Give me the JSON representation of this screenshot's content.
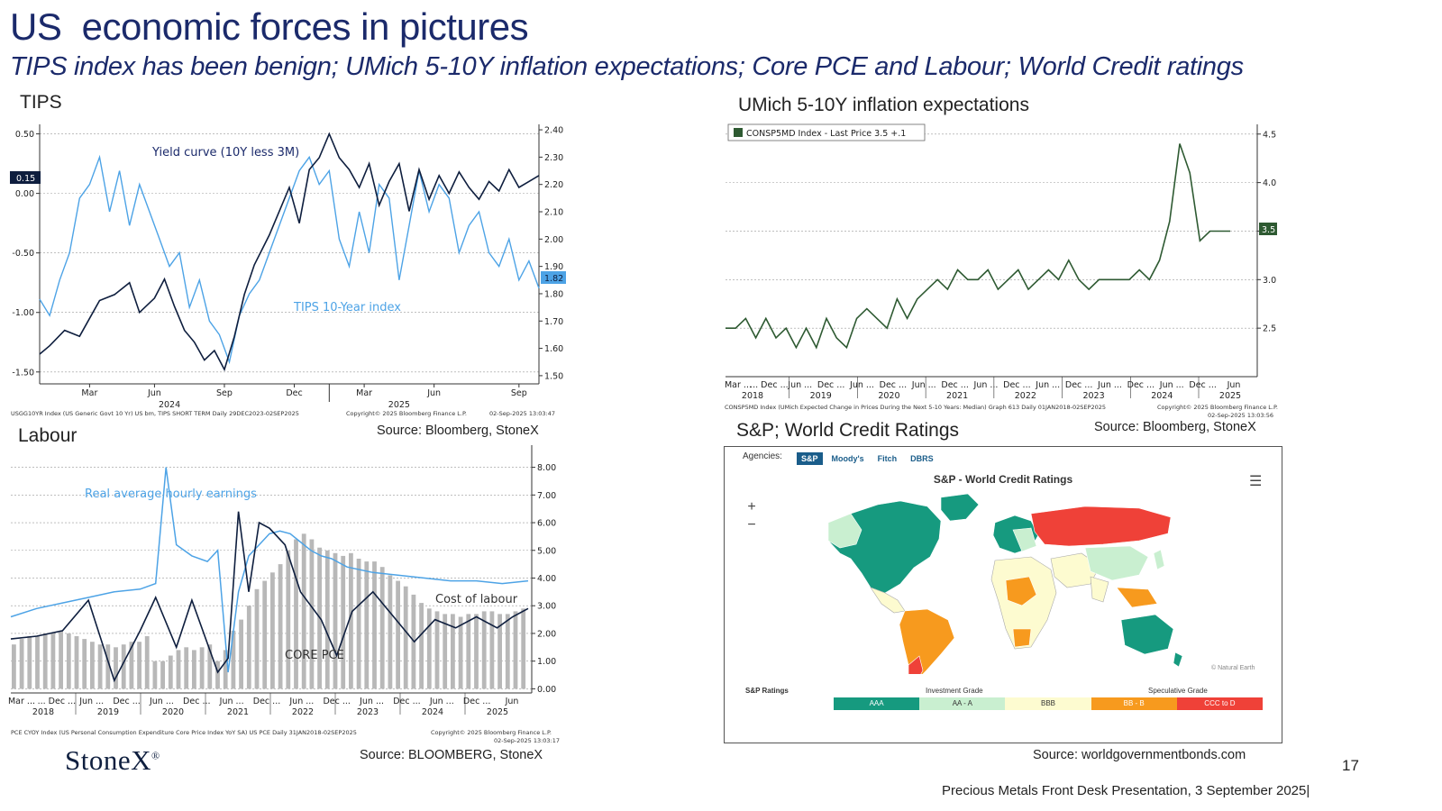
{
  "slide": {
    "title": "US  economic forces in pictures",
    "subtitle": "TIPS index has been benign; UMich 5-10Y inflation expectations; Core PCE and Labour; World Credit ratings",
    "brand": "StoneX",
    "brand_mark": "®",
    "page_number": "17",
    "footer": "Precious Metals Front Desk Presentation, 3 September 2025|",
    "colors": {
      "navy": "#1b2a6b",
      "tips_blue": "#4da3e6",
      "yield_dark": "#0e1e3e",
      "umich_green": "#2e5a32",
      "pce_bar": "#b8b8b8"
    }
  },
  "panels": {
    "tips": {
      "label": "TIPS",
      "source": "Source: Bloomberg, StoneX",
      "footnote_left": "USGG10YR Index (US Generic Govt 10 Yr) US bm, TIPS SHORT TERM  Daily 29DEC2023-02SEP2025",
      "footnote_mid": "Copyright© 2025 Bloomberg Finance L.P.",
      "footnote_right": "02-Sep-2025 13:03:47"
    },
    "umich": {
      "label": "UMich 5-10Y inflation expectations",
      "source": "Source: Bloomberg, StoneX",
      "legend": "CONSP5MD Index - Last Price 3.5  +.1",
      "footnote_left": "CONSP5MD Index (UMich Expected Change in Prices During the Next 5-10 Years: Median) Graph 613  Daily 01JAN2018-02SEP2025",
      "footnote_mid": "Copyright© 2025 Bloomberg Finance L.P.",
      "footnote_right": "02-Sep-2025 13:03:56"
    },
    "labour": {
      "label": "Labour",
      "source": "Source: BLOOMBERG, StoneX",
      "footnote_left": "PCE CYOY Index (US Personal Consumption Expenditure Core Price Index YoY SA) US PCE  Daily 31JAN2018-02SEP2025",
      "footnote_mid": "Copyright© 2025 Bloomberg Finance L.P.",
      "footnote_right": "02-Sep-2025 13:03:17"
    },
    "credit": {
      "label": "S&P; World Credit Ratings",
      "source": "Source: worldgovernmentbonds.com",
      "agencies_label": "Agencies:",
      "tabs": [
        "S&P",
        "Moody's",
        "Fitch",
        "DBRS"
      ],
      "map_title": "S&P - World Credit Ratings",
      "menu_icon": "hamburger-menu-icon",
      "zoom_in": "+",
      "zoom_out": "−",
      "attribution": "© Natural Earth",
      "legend_title": "S&P Ratings",
      "group_investment": "Investment Grade",
      "group_speculative": "Speculative Grade",
      "buckets": [
        {
          "label": "AAA",
          "color": "#169a7f"
        },
        {
          "label": "AA - A",
          "color": "#c9efd0"
        },
        {
          "label": "BBB",
          "color": "#fdfbd0"
        },
        {
          "label": "BB - B",
          "color": "#f79a1e"
        },
        {
          "label": "CCC to D",
          "color": "#ef4138"
        }
      ]
    }
  },
  "chart_data": [
    {
      "id": "tips",
      "type": "line",
      "series": [
        {
          "name": "Yield curve (10Y less 3M)",
          "axis": "left",
          "color": "#0e1e3e",
          "last": "0.15",
          "t": [
            0,
            0.02,
            0.05,
            0.08,
            0.1,
            0.12,
            0.15,
            0.18,
            0.2,
            0.23,
            0.25,
            0.27,
            0.29,
            0.31,
            0.33,
            0.35,
            0.37,
            0.39,
            0.41,
            0.43,
            0.46,
            0.48,
            0.5,
            0.52,
            0.54,
            0.56,
            0.58,
            0.6,
            0.62,
            0.64,
            0.66,
            0.68,
            0.7,
            0.72,
            0.74,
            0.76,
            0.78,
            0.8,
            0.82,
            0.84,
            0.86,
            0.88,
            0.9,
            0.92,
            0.94,
            0.96,
            0.98,
            1.0
          ],
          "v": [
            -1.35,
            -1.28,
            -1.15,
            -1.2,
            -1.05,
            -0.9,
            -0.85,
            -0.75,
            -1.0,
            -0.88,
            -0.72,
            -0.95,
            -1.15,
            -1.25,
            -1.4,
            -1.32,
            -1.48,
            -1.2,
            -0.85,
            -0.6,
            -0.35,
            -0.15,
            0.05,
            -0.25,
            0.2,
            0.3,
            0.5,
            0.3,
            0.2,
            0.05,
            0.25,
            -0.1,
            0.1,
            0.25,
            -0.15,
            0.2,
            -0.05,
            0.15,
            0.0,
            0.18,
            0.05,
            -0.05,
            0.1,
            0.02,
            0.2,
            0.05,
            0.1,
            0.15
          ]
        },
        {
          "name": "TIPS 10-Year index",
          "axis": "right",
          "color": "#4da3e6",
          "last": "1.82",
          "t": [
            0,
            0.02,
            0.04,
            0.06,
            0.08,
            0.1,
            0.12,
            0.14,
            0.16,
            0.18,
            0.2,
            0.22,
            0.24,
            0.26,
            0.28,
            0.3,
            0.32,
            0.34,
            0.36,
            0.38,
            0.4,
            0.42,
            0.44,
            0.46,
            0.48,
            0.5,
            0.52,
            0.54,
            0.56,
            0.58,
            0.6,
            0.62,
            0.64,
            0.66,
            0.68,
            0.7,
            0.72,
            0.74,
            0.76,
            0.78,
            0.8,
            0.82,
            0.84,
            0.86,
            0.88,
            0.9,
            0.92,
            0.94,
            0.96,
            0.98,
            1.0
          ],
          "v": [
            1.78,
            1.72,
            1.85,
            1.95,
            2.15,
            2.2,
            2.3,
            2.1,
            2.25,
            2.05,
            2.2,
            2.1,
            2.0,
            1.9,
            1.95,
            1.75,
            1.85,
            1.7,
            1.65,
            1.55,
            1.72,
            1.8,
            1.85,
            1.95,
            2.05,
            2.15,
            2.25,
            2.3,
            2.2,
            2.25,
            2.0,
            1.9,
            2.1,
            1.95,
            2.2,
            2.15,
            1.85,
            2.05,
            2.25,
            2.1,
            2.2,
            2.15,
            1.95,
            2.05,
            2.1,
            1.95,
            1.9,
            2.0,
            1.85,
            1.92,
            1.82
          ]
        }
      ],
      "left_axis": {
        "ticks": [
          "0.50",
          "0.00",
          "-0.50",
          "-1.00",
          "-1.50"
        ],
        "values": [
          0.5,
          0,
          -0.5,
          -1.0,
          -1.5
        ],
        "ylim": [
          -1.6,
          0.58
        ]
      },
      "right_axis": {
        "ticks": [
          "2.40",
          "2.30",
          "2.20",
          "2.10",
          "2.00",
          "1.90",
          "1.80",
          "1.70",
          "1.60",
          "1.50"
        ],
        "values": [
          2.4,
          2.3,
          2.2,
          2.1,
          2.0,
          1.9,
          1.8,
          1.7,
          1.6,
          1.5
        ],
        "ylim": [
          1.47,
          2.42
        ]
      },
      "x_ticks": [
        "Mar",
        "Jun",
        "Sep",
        "Dec",
        "Mar",
        "Jun",
        "Sep"
      ],
      "x_years": [
        "2024",
        "2025"
      ],
      "annotations": [
        "Yield curve (10Y less 3M)",
        "TIPS 10-Year index"
      ]
    },
    {
      "id": "umich",
      "type": "line",
      "series": [
        {
          "name": "CONSP5MD Index",
          "color": "#2e5a32",
          "last": "3.5",
          "t": [
            0,
            0.02,
            0.04,
            0.06,
            0.08,
            0.1,
            0.12,
            0.14,
            0.16,
            0.18,
            0.2,
            0.22,
            0.24,
            0.26,
            0.28,
            0.3,
            0.32,
            0.34,
            0.36,
            0.38,
            0.4,
            0.42,
            0.44,
            0.46,
            0.48,
            0.5,
            0.52,
            0.54,
            0.56,
            0.58,
            0.6,
            0.62,
            0.64,
            0.66,
            0.68,
            0.7,
            0.72,
            0.74,
            0.76,
            0.78,
            0.8,
            0.82,
            0.84,
            0.86,
            0.88,
            0.9,
            0.92,
            0.94,
            0.96,
            0.98,
            1.0
          ],
          "v": [
            2.5,
            2.5,
            2.6,
            2.4,
            2.6,
            2.4,
            2.5,
            2.3,
            2.5,
            2.3,
            2.6,
            2.4,
            2.3,
            2.6,
            2.7,
            2.6,
            2.5,
            2.8,
            2.6,
            2.8,
            2.9,
            3.0,
            2.9,
            3.1,
            3.0,
            3.0,
            3.1,
            2.9,
            3.0,
            3.1,
            2.9,
            3.0,
            3.1,
            3.0,
            3.2,
            3.0,
            2.9,
            3.0,
            3.0,
            3.0,
            3.0,
            3.1,
            3.0,
            3.2,
            3.6,
            4.4,
            4.1,
            3.4,
            3.5,
            3.5,
            3.5
          ]
        }
      ],
      "right_axis": {
        "ticks": [
          "4.5",
          "4.0",
          "3.5",
          "3.0",
          "2.5"
        ],
        "values": [
          4.5,
          4.0,
          3.5,
          3.0,
          2.5
        ],
        "ylim": [
          2.0,
          4.6
        ]
      },
      "x_ticks": [
        "Mar ...",
        "... Dec ...",
        "Jun ...",
        "Dec ...",
        "Jun ...",
        "Dec ...",
        "Jun ...",
        "Dec ...",
        "Jun ...",
        "Dec ...",
        "Jun ...",
        "Dec ...",
        "Jun ...",
        "Dec ...",
        "Jun ...",
        "Dec ...",
        "Jun"
      ],
      "x_years": [
        "2018",
        "2019",
        "2020",
        "2021",
        "2022",
        "2023",
        "2024",
        "2025"
      ]
    },
    {
      "id": "labour",
      "type": "line",
      "series": [
        {
          "name": "Real average hourly earnings",
          "color": "#4da3e6",
          "t": [
            0,
            0.05,
            0.1,
            0.15,
            0.2,
            0.25,
            0.28,
            0.3,
            0.32,
            0.35,
            0.38,
            0.4,
            0.42,
            0.44,
            0.46,
            0.48,
            0.5,
            0.52,
            0.54,
            0.56,
            0.58,
            0.6,
            0.62,
            0.65,
            0.7,
            0.75,
            0.8,
            0.85,
            0.9,
            0.95,
            1.0
          ],
          "v": [
            2.6,
            2.9,
            3.1,
            3.3,
            3.5,
            3.6,
            3.8,
            8.0,
            5.2,
            4.8,
            4.6,
            5.0,
            0.6,
            3.5,
            4.8,
            5.2,
            5.6,
            5.7,
            5.6,
            5.3,
            5.0,
            4.8,
            4.7,
            4.4,
            4.2,
            4.1,
            4.0,
            3.9,
            3.9,
            3.8,
            3.9
          ]
        },
        {
          "name": "Cost of labour",
          "color": "#0e1e3e",
          "t": [
            0,
            0.05,
            0.1,
            0.15,
            0.2,
            0.25,
            0.28,
            0.32,
            0.35,
            0.4,
            0.42,
            0.44,
            0.46,
            0.48,
            0.5,
            0.53,
            0.56,
            0.6,
            0.63,
            0.66,
            0.7,
            0.74,
            0.78,
            0.82,
            0.86,
            0.9,
            0.94,
            0.97,
            1.0
          ],
          "v": [
            1.8,
            1.9,
            2.1,
            3.2,
            0.3,
            2.1,
            3.3,
            1.5,
            3.2,
            0.6,
            1.1,
            6.4,
            3.5,
            6.0,
            5.8,
            5.2,
            3.5,
            2.5,
            1.2,
            2.8,
            3.5,
            2.6,
            1.7,
            2.5,
            2.2,
            2.6,
            2.2,
            2.6,
            2.9
          ]
        }
      ],
      "bars": {
        "name": "CORE PCE",
        "color": "#b8b8b8",
        "v": [
          1.6,
          1.8,
          1.9,
          1.9,
          2.0,
          2.0,
          2.1,
          2.0,
          1.9,
          1.8,
          1.7,
          1.6,
          1.6,
          1.5,
          1.6,
          1.7,
          1.7,
          1.9,
          1.0,
          1.0,
          1.2,
          1.4,
          1.5,
          1.4,
          1.5,
          1.6,
          1.0,
          1.4,
          2.1,
          2.5,
          3.0,
          3.6,
          3.9,
          4.2,
          4.5,
          5.0,
          5.4,
          5.6,
          5.4,
          5.1,
          5.0,
          4.9,
          4.8,
          4.9,
          4.7,
          4.6,
          4.6,
          4.4,
          4.1,
          3.9,
          3.7,
          3.4,
          3.1,
          2.9,
          2.8,
          2.7,
          2.7,
          2.6,
          2.7,
          2.7,
          2.8,
          2.8,
          2.7,
          2.7,
          2.8,
          2.9
        ]
      },
      "right_axis": {
        "ticks": [
          "8.00",
          "7.00",
          "6.00",
          "5.00",
          "4.00",
          "3.00",
          "2.00",
          "1.00",
          "0.00"
        ],
        "values": [
          8,
          7,
          6,
          5,
          4,
          3,
          2,
          1,
          0
        ],
        "ylim": [
          -0.15,
          8.8
        ]
      },
      "x_ticks": [
        "Mar ...",
        "... Dec ...",
        "Jun ...",
        "Dec ...",
        "Jun ...",
        "Dec ...",
        "Jun ...",
        "Dec ...",
        "Jun ...",
        "Dec ...",
        "Jun ...",
        "Dec ...",
        "Jun ...",
        "Dec ...",
        "Jun"
      ],
      "x_years": [
        "2018",
        "2019",
        "2020",
        "2021",
        "2022",
        "2023",
        "2024",
        "2025"
      ],
      "annotations": [
        "Real average hourly earnings",
        "Cost of labour",
        "CORE PCE"
      ]
    }
  ]
}
